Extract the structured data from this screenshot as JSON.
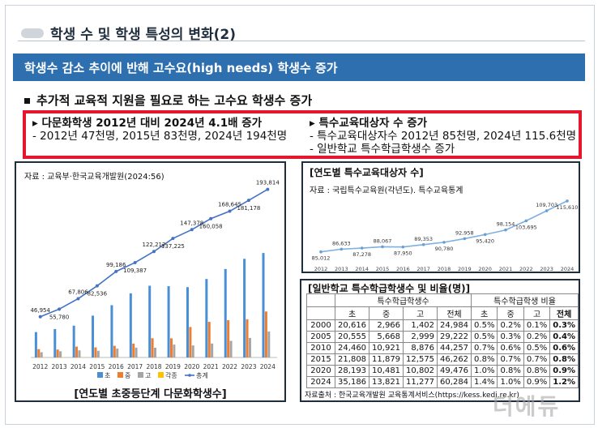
{
  "title": "학생 수 및 학생 특성의 변화(2)",
  "banner": "학생수 감소 추이에 반해 고수요(high needs) 학생수 증가",
  "bullet": "추가적 교육적 지원을 필요로 하는 고수요 학생수 증가",
  "highlight": {
    "left_head": "다문화학생 2012년 대비 2024년 4.1배 증가",
    "left_sub": "- 2012년 47천명, 2015년 83천명, 2024년 194천명",
    "right_head": "특수교육대상자 수 증가",
    "right_sub1": "- 특수교육대상자수 2012년 85천명, 2024년 115.6천명",
    "right_sub2": "- 일반학교 특수학급학생수 증가"
  },
  "panel1": {
    "source": "자료 : 교육부·한국교육개발원(2024:56)",
    "caption": "[연도별 초중등단계 다문화학생수]"
  },
  "panel2": {
    "title": "[연도별 특수교육대상자 수]",
    "source": "자료 : 국립특수교육원(각년도). 특수교육통계"
  },
  "panel3": {
    "title": "[일반학교 특수학급학생수 및 비율(명)]",
    "source": "자료출처 : 한국교육개발원 교육통계서비스(https://kess.kedi.re.kr)",
    "group1": "특수학급학생수",
    "group2": "특수학급학생 비율",
    "cols": [
      "초",
      "중",
      "고",
      "전체",
      "초",
      "중",
      "고",
      "전체"
    ],
    "rows": [
      [
        "2000",
        "20,616",
        "2,966",
        "1,402",
        "24,984",
        "0.5%",
        "0.2%",
        "0.1%",
        "0.3%"
      ],
      [
        "2005",
        "20,555",
        "5,668",
        "2,999",
        "29,222",
        "0.5%",
        "0.3%",
        "0.2%",
        "0.4%"
      ],
      [
        "2010",
        "24,460",
        "10,921",
        "8,876",
        "44,257",
        "0.7%",
        "0.6%",
        "0.5%",
        "0.6%"
      ],
      [
        "2015",
        "21,808",
        "11,879",
        "12,575",
        "46,262",
        "0.8%",
        "0.7%",
        "0.7%",
        "0.8%"
      ],
      [
        "2020",
        "28,193",
        "10,481",
        "10,802",
        "49,476",
        "1.0%",
        "0.8%",
        "0.8%",
        "0.9%"
      ],
      [
        "2024",
        "35,186",
        "13,821",
        "11,277",
        "60,284",
        "1.4%",
        "1.0%",
        "0.9%",
        "1.2%"
      ]
    ]
  },
  "watermark": "더에듀",
  "chart_data": [
    {
      "type": "bar",
      "categories": [
        "2012",
        "2013",
        "2014",
        "2015",
        "2016",
        "2017",
        "2018",
        "2019",
        "2020",
        "2021",
        "2022",
        "2023",
        "2024"
      ],
      "series": [
        {
          "name": "초",
          "color": "#4a8fd4",
          "values": [
            29282,
            32831,
            36672,
            48225,
            60283,
            73972,
            82733,
            82164,
            81116,
            90489,
            101987,
            113763,
            120462
          ]
        },
        {
          "name": "중",
          "color": "#ed7d31",
          "values": [
            9627,
            9174,
            12525,
            11632,
            13431,
            16007,
            22145,
            22044,
            35158,
            41078,
            43050,
            44066,
            53000
          ]
        },
        {
          "name": "고",
          "color": "#a5a5a5",
          "values": [
            6045,
            7129,
            8188,
            7692,
            10211,
            11281,
            11207,
            14813,
            13858,
            16086,
            19154,
            22503,
            30000
          ]
        },
        {
          "name": "각종",
          "color": "#ffc000",
          "values": [
            400,
            400,
            400,
            0,
            0,
            0,
            0,
            0,
            0,
            0,
            0,
            0,
            0
          ]
        },
        {
          "name": "총계",
          "color": "#4472c4",
          "type": "line",
          "values": [
            46954,
            55780,
            67806,
            82536,
            99186,
            109387,
            122212,
            137225,
            147378,
            160058,
            168645,
            181178,
            193814
          ]
        }
      ],
      "labels": [
        "46,954",
        "55,780",
        "67,806",
        "82,536",
        "99,186",
        "109,387",
        "122,212",
        "137,225",
        "147,378",
        "160,058",
        "168,645",
        "181,178",
        "193,814"
      ],
      "ylim": [
        0,
        200000
      ]
    },
    {
      "type": "line",
      "categories": [
        "2012",
        "2013",
        "2014",
        "2015",
        "2016",
        "2017",
        "2018",
        "2019",
        "2020",
        "2021",
        "2022",
        "2023",
        "2024"
      ],
      "values": [
        85012,
        86633,
        87278,
        88067,
        87950,
        89353,
        90780,
        92958,
        95420,
        98154,
        103695,
        109703,
        115610
      ],
      "labels": [
        "85,012",
        "86,633",
        "87,278",
        "88,067",
        "87,950",
        "89,353",
        "90,780",
        "92,958",
        "95,420",
        "98,154",
        "103,695",
        "109,703",
        "115,610"
      ],
      "ylim": [
        80000,
        118000
      ]
    }
  ]
}
